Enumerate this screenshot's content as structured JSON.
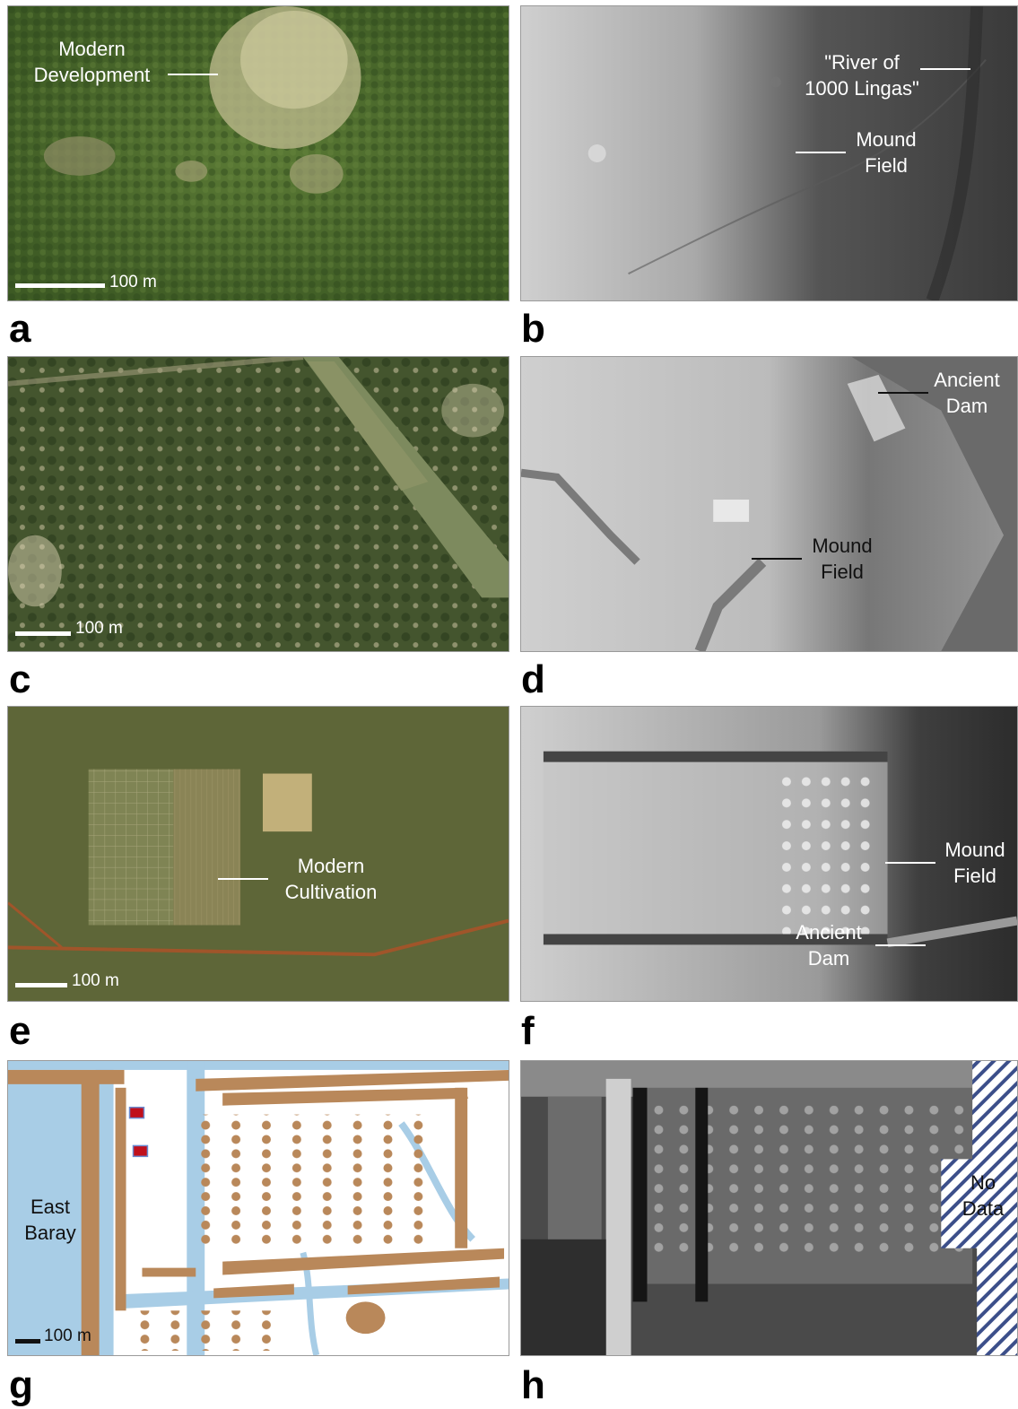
{
  "panels": {
    "a": {
      "label": "a",
      "annotations": [
        "Modern",
        "Development"
      ],
      "scale": "100 m"
    },
    "b": {
      "label": "b",
      "annotations": [
        "\"River of",
        "1000 Lingas\"",
        "Mound",
        "Field"
      ]
    },
    "c": {
      "label": "c",
      "scale": "100 m"
    },
    "d": {
      "label": "d",
      "annotations": [
        "Ancient",
        "Dam",
        "Mound",
        "Field"
      ]
    },
    "e": {
      "label": "e",
      "annotations": [
        "Modern",
        "Cultivation"
      ],
      "scale": "100 m"
    },
    "f": {
      "label": "f",
      "annotations": [
        "Mound",
        "Field",
        "Ancient",
        "Dam"
      ]
    },
    "g": {
      "label": "g",
      "annotations": [
        "East",
        "Baray"
      ],
      "scale": "100 m"
    },
    "h": {
      "label": "h",
      "annotations": [
        "No",
        "Data"
      ]
    }
  },
  "colors": {
    "forest": "#4a6a2c",
    "water": "#a8cde6",
    "mound": "#b9885a",
    "red_structure": "#c0101c",
    "hatch": "#3c4f8a"
  }
}
